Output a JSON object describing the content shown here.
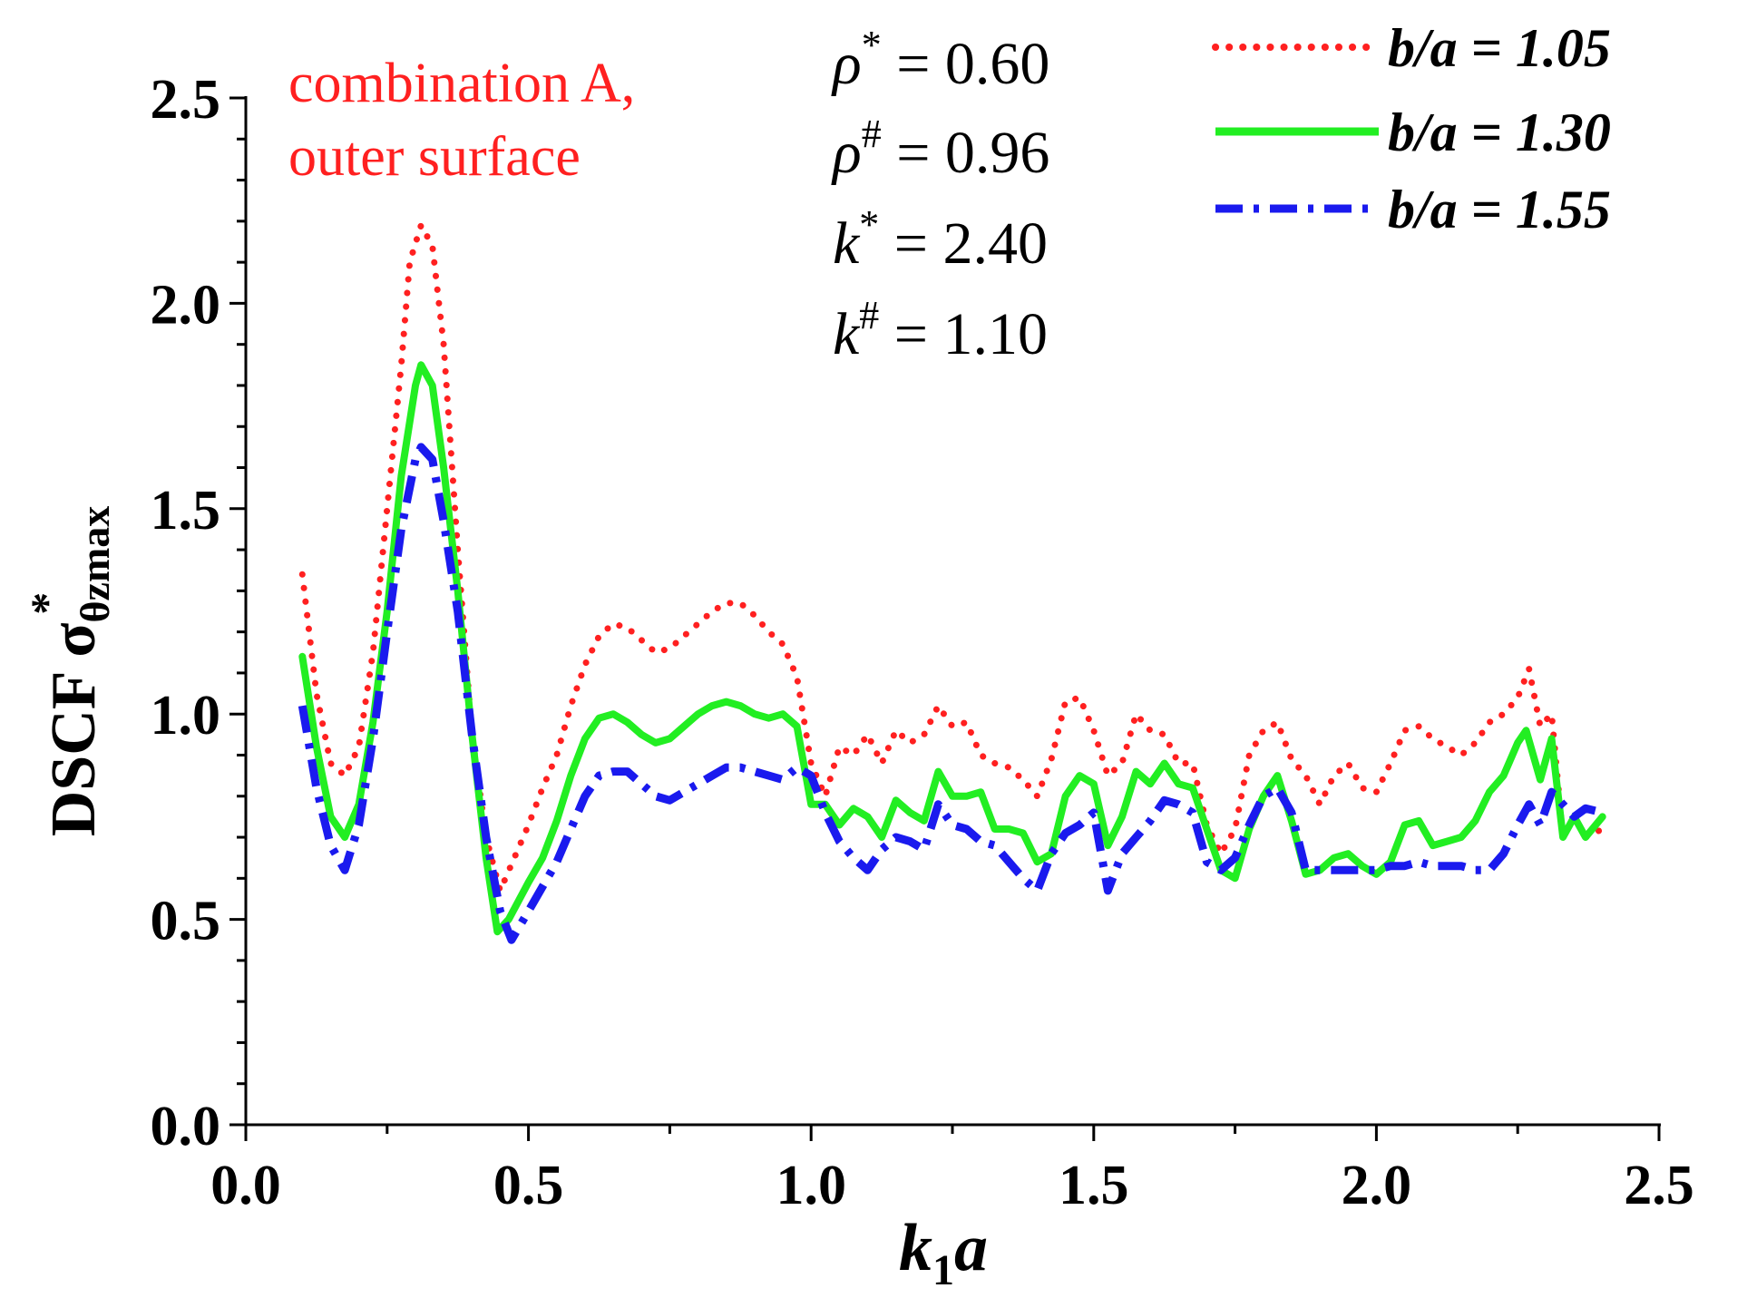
{
  "chart_data": {
    "type": "line",
    "title": "",
    "xlabel": {
      "main": "k",
      "sub": "1",
      "tail": "a"
    },
    "ylabel": {
      "main": "DSCF σ",
      "sup": "*",
      "sub": "θzmax"
    },
    "xlim": [
      0.0,
      2.5
    ],
    "ylim": [
      0.0,
      2.5
    ],
    "xticks": [
      "0.0",
      "0.5",
      "1.0",
      "1.5",
      "2.0",
      "2.5"
    ],
    "yticks": [
      "0.0",
      "0.5",
      "1.0",
      "1.5",
      "2.0",
      "2.5"
    ],
    "xtick_values": [
      0.0,
      0.5,
      1.0,
      1.5,
      2.0,
      2.5
    ],
    "ytick_values": [
      0.0,
      0.5,
      1.0,
      1.5,
      2.0,
      2.5
    ],
    "grid": false,
    "legend_position": "top-right",
    "annotation": [
      "combination A,",
      "outer surface"
    ],
    "parameters": [
      {
        "sym": "ρ",
        "sup": "*",
        "rest": " = 0.60"
      },
      {
        "sym": "ρ",
        "sup": "#",
        "rest": " = 0.96"
      },
      {
        "sym": "k",
        "sup": "*",
        "rest": " = 2.40"
      },
      {
        "sym": "k",
        "sup": "#",
        "rest": " = 1.10"
      }
    ],
    "series": [
      {
        "name": "b/a = 1.05",
        "color": "#ff2020",
        "style": "dotted",
        "points": [
          [
            0.1,
            1.34
          ],
          [
            0.125,
            1.05
          ],
          [
            0.15,
            0.88
          ],
          [
            0.175,
            0.85
          ],
          [
            0.2,
            0.92
          ],
          [
            0.225,
            1.15
          ],
          [
            0.25,
            1.5
          ],
          [
            0.275,
            1.85
          ],
          [
            0.29,
            2.1
          ],
          [
            0.31,
            2.19
          ],
          [
            0.33,
            2.14
          ],
          [
            0.35,
            1.9
          ],
          [
            0.375,
            1.4
          ],
          [
            0.4,
            0.95
          ],
          [
            0.425,
            0.7
          ],
          [
            0.45,
            0.57
          ],
          [
            0.475,
            0.65
          ],
          [
            0.5,
            0.73
          ],
          [
            0.525,
            0.82
          ],
          [
            0.55,
            0.9
          ],
          [
            0.575,
            1.02
          ],
          [
            0.6,
            1.12
          ],
          [
            0.625,
            1.19
          ],
          [
            0.65,
            1.22
          ],
          [
            0.675,
            1.21
          ],
          [
            0.7,
            1.18
          ],
          [
            0.725,
            1.15
          ],
          [
            0.75,
            1.16
          ],
          [
            0.775,
            1.19
          ],
          [
            0.8,
            1.22
          ],
          [
            0.825,
            1.25
          ],
          [
            0.85,
            1.27
          ],
          [
            0.875,
            1.27
          ],
          [
            0.9,
            1.24
          ],
          [
            0.925,
            1.2
          ],
          [
            0.95,
            1.17
          ],
          [
            0.975,
            1.09
          ],
          [
            1.0,
            0.88
          ],
          [
            1.025,
            0.8
          ],
          [
            1.05,
            0.92
          ],
          [
            1.075,
            0.9
          ],
          [
            1.1,
            0.95
          ],
          [
            1.125,
            0.88
          ],
          [
            1.15,
            0.96
          ],
          [
            1.175,
            0.93
          ],
          [
            1.2,
            0.95
          ],
          [
            1.225,
            1.02
          ],
          [
            1.25,
            0.97
          ],
          [
            1.275,
            0.98
          ],
          [
            1.3,
            0.9
          ],
          [
            1.325,
            0.88
          ],
          [
            1.35,
            0.87
          ],
          [
            1.375,
            0.84
          ],
          [
            1.4,
            0.8
          ],
          [
            1.425,
            0.89
          ],
          [
            1.45,
            1.03
          ],
          [
            1.475,
            1.04
          ],
          [
            1.5,
            0.96
          ],
          [
            1.525,
            0.85
          ],
          [
            1.55,
            0.88
          ],
          [
            1.575,
            1.0
          ],
          [
            1.6,
            0.96
          ],
          [
            1.625,
            0.95
          ],
          [
            1.65,
            0.88
          ],
          [
            1.675,
            0.88
          ],
          [
            1.7,
            0.73
          ],
          [
            1.725,
            0.66
          ],
          [
            1.75,
            0.72
          ],
          [
            1.775,
            0.9
          ],
          [
            1.8,
            0.96
          ],
          [
            1.825,
            0.98
          ],
          [
            1.85,
            0.89
          ],
          [
            1.875,
            0.85
          ],
          [
            1.9,
            0.78
          ],
          [
            1.925,
            0.85
          ],
          [
            1.95,
            0.88
          ],
          [
            1.975,
            0.82
          ],
          [
            2.0,
            0.81
          ],
          [
            2.025,
            0.88
          ],
          [
            2.05,
            0.96
          ],
          [
            2.075,
            0.97
          ],
          [
            2.1,
            0.94
          ],
          [
            2.125,
            0.92
          ],
          [
            2.15,
            0.9
          ],
          [
            2.175,
            0.93
          ],
          [
            2.2,
            0.98
          ],
          [
            2.225,
            1.0
          ],
          [
            2.25,
            1.04
          ],
          [
            2.27,
            1.11
          ],
          [
            2.29,
            0.97
          ],
          [
            2.31,
            1.0
          ],
          [
            2.33,
            0.7
          ],
          [
            2.35,
            0.75
          ],
          [
            2.37,
            0.7
          ],
          [
            2.4,
            0.72
          ]
        ]
      },
      {
        "name": "b/a = 1.30",
        "color": "#22ee22",
        "style": "solid",
        "points": [
          [
            0.1,
            1.14
          ],
          [
            0.125,
            0.92
          ],
          [
            0.15,
            0.75
          ],
          [
            0.175,
            0.7
          ],
          [
            0.2,
            0.78
          ],
          [
            0.225,
            0.98
          ],
          [
            0.25,
            1.25
          ],
          [
            0.275,
            1.58
          ],
          [
            0.3,
            1.8
          ],
          [
            0.31,
            1.85
          ],
          [
            0.33,
            1.8
          ],
          [
            0.35,
            1.6
          ],
          [
            0.375,
            1.3
          ],
          [
            0.4,
            0.95
          ],
          [
            0.425,
            0.65
          ],
          [
            0.445,
            0.47
          ],
          [
            0.465,
            0.5
          ],
          [
            0.5,
            0.59
          ],
          [
            0.525,
            0.65
          ],
          [
            0.55,
            0.74
          ],
          [
            0.575,
            0.85
          ],
          [
            0.6,
            0.94
          ],
          [
            0.625,
            0.99
          ],
          [
            0.65,
            1.0
          ],
          [
            0.675,
            0.98
          ],
          [
            0.7,
            0.95
          ],
          [
            0.725,
            0.93
          ],
          [
            0.75,
            0.94
          ],
          [
            0.775,
            0.97
          ],
          [
            0.8,
            1.0
          ],
          [
            0.825,
            1.02
          ],
          [
            0.85,
            1.03
          ],
          [
            0.875,
            1.02
          ],
          [
            0.9,
            1.0
          ],
          [
            0.925,
            0.99
          ],
          [
            0.95,
            1.0
          ],
          [
            0.975,
            0.97
          ],
          [
            1.0,
            0.78
          ],
          [
            1.025,
            0.78
          ],
          [
            1.05,
            0.73
          ],
          [
            1.075,
            0.77
          ],
          [
            1.1,
            0.75
          ],
          [
            1.125,
            0.7
          ],
          [
            1.15,
            0.79
          ],
          [
            1.175,
            0.76
          ],
          [
            1.2,
            0.74
          ],
          [
            1.225,
            0.86
          ],
          [
            1.25,
            0.8
          ],
          [
            1.275,
            0.8
          ],
          [
            1.3,
            0.81
          ],
          [
            1.325,
            0.72
          ],
          [
            1.35,
            0.72
          ],
          [
            1.375,
            0.71
          ],
          [
            1.4,
            0.64
          ],
          [
            1.425,
            0.66
          ],
          [
            1.45,
            0.8
          ],
          [
            1.475,
            0.85
          ],
          [
            1.5,
            0.83
          ],
          [
            1.525,
            0.68
          ],
          [
            1.55,
            0.75
          ],
          [
            1.575,
            0.86
          ],
          [
            1.6,
            0.83
          ],
          [
            1.625,
            0.88
          ],
          [
            1.65,
            0.83
          ],
          [
            1.675,
            0.82
          ],
          [
            1.7,
            0.72
          ],
          [
            1.725,
            0.62
          ],
          [
            1.75,
            0.6
          ],
          [
            1.775,
            0.72
          ],
          [
            1.8,
            0.8
          ],
          [
            1.825,
            0.85
          ],
          [
            1.85,
            0.74
          ],
          [
            1.875,
            0.61
          ],
          [
            1.9,
            0.62
          ],
          [
            1.925,
            0.65
          ],
          [
            1.95,
            0.66
          ],
          [
            1.975,
            0.63
          ],
          [
            2.0,
            0.61
          ],
          [
            2.025,
            0.64
          ],
          [
            2.05,
            0.73
          ],
          [
            2.075,
            0.74
          ],
          [
            2.1,
            0.68
          ],
          [
            2.125,
            0.69
          ],
          [
            2.15,
            0.7
          ],
          [
            2.175,
            0.74
          ],
          [
            2.2,
            0.81
          ],
          [
            2.225,
            0.85
          ],
          [
            2.25,
            0.93
          ],
          [
            2.265,
            0.96
          ],
          [
            2.29,
            0.84
          ],
          [
            2.31,
            0.94
          ],
          [
            2.33,
            0.7
          ],
          [
            2.35,
            0.75
          ],
          [
            2.37,
            0.7
          ],
          [
            2.4,
            0.75
          ]
        ]
      },
      {
        "name": "b/a = 1.55",
        "color": "#1a1aee",
        "style": "dashdot",
        "points": [
          [
            0.1,
            1.02
          ],
          [
            0.125,
            0.82
          ],
          [
            0.15,
            0.68
          ],
          [
            0.175,
            0.62
          ],
          [
            0.2,
            0.73
          ],
          [
            0.225,
            0.94
          ],
          [
            0.25,
            1.2
          ],
          [
            0.275,
            1.45
          ],
          [
            0.3,
            1.62
          ],
          [
            0.31,
            1.65
          ],
          [
            0.33,
            1.62
          ],
          [
            0.35,
            1.47
          ],
          [
            0.375,
            1.25
          ],
          [
            0.4,
            0.95
          ],
          [
            0.425,
            0.7
          ],
          [
            0.45,
            0.52
          ],
          [
            0.47,
            0.45
          ],
          [
            0.5,
            0.52
          ],
          [
            0.525,
            0.58
          ],
          [
            0.55,
            0.64
          ],
          [
            0.575,
            0.72
          ],
          [
            0.6,
            0.8
          ],
          [
            0.625,
            0.85
          ],
          [
            0.65,
            0.86
          ],
          [
            0.675,
            0.86
          ],
          [
            0.7,
            0.83
          ],
          [
            0.725,
            0.8
          ],
          [
            0.75,
            0.79
          ],
          [
            0.775,
            0.81
          ],
          [
            0.8,
            0.83
          ],
          [
            0.825,
            0.85
          ],
          [
            0.85,
            0.87
          ],
          [
            0.875,
            0.87
          ],
          [
            0.9,
            0.86
          ],
          [
            0.925,
            0.85
          ],
          [
            0.95,
            0.84
          ],
          [
            0.975,
            0.87
          ],
          [
            1.0,
            0.85
          ],
          [
            1.025,
            0.76
          ],
          [
            1.05,
            0.69
          ],
          [
            1.075,
            0.65
          ],
          [
            1.1,
            0.62
          ],
          [
            1.125,
            0.67
          ],
          [
            1.15,
            0.7
          ],
          [
            1.175,
            0.69
          ],
          [
            1.2,
            0.67
          ],
          [
            1.225,
            0.78
          ],
          [
            1.25,
            0.73
          ],
          [
            1.275,
            0.72
          ],
          [
            1.3,
            0.69
          ],
          [
            1.325,
            0.68
          ],
          [
            1.35,
            0.64
          ],
          [
            1.375,
            0.6
          ],
          [
            1.4,
            0.57
          ],
          [
            1.425,
            0.66
          ],
          [
            1.45,
            0.71
          ],
          [
            1.475,
            0.73
          ],
          [
            1.5,
            0.76
          ],
          [
            1.525,
            0.57
          ],
          [
            1.55,
            0.66
          ],
          [
            1.575,
            0.7
          ],
          [
            1.6,
            0.74
          ],
          [
            1.625,
            0.79
          ],
          [
            1.65,
            0.78
          ],
          [
            1.675,
            0.76
          ],
          [
            1.7,
            0.64
          ],
          [
            1.725,
            0.62
          ],
          [
            1.75,
            0.65
          ],
          [
            1.775,
            0.73
          ],
          [
            1.8,
            0.8
          ],
          [
            1.825,
            0.82
          ],
          [
            1.85,
            0.76
          ],
          [
            1.875,
            0.62
          ],
          [
            1.9,
            0.62
          ],
          [
            1.925,
            0.62
          ],
          [
            1.95,
            0.62
          ],
          [
            1.975,
            0.62
          ],
          [
            2.0,
            0.62
          ],
          [
            2.025,
            0.63
          ],
          [
            2.05,
            0.63
          ],
          [
            2.075,
            0.64
          ],
          [
            2.1,
            0.63
          ],
          [
            2.125,
            0.63
          ],
          [
            2.15,
            0.63
          ],
          [
            2.175,
            0.62
          ],
          [
            2.2,
            0.62
          ],
          [
            2.225,
            0.66
          ],
          [
            2.25,
            0.73
          ],
          [
            2.27,
            0.78
          ],
          [
            2.29,
            0.73
          ],
          [
            2.31,
            0.81
          ],
          [
            2.33,
            0.78
          ],
          [
            2.35,
            0.75
          ],
          [
            2.37,
            0.77
          ],
          [
            2.4,
            0.76
          ]
        ]
      }
    ]
  }
}
